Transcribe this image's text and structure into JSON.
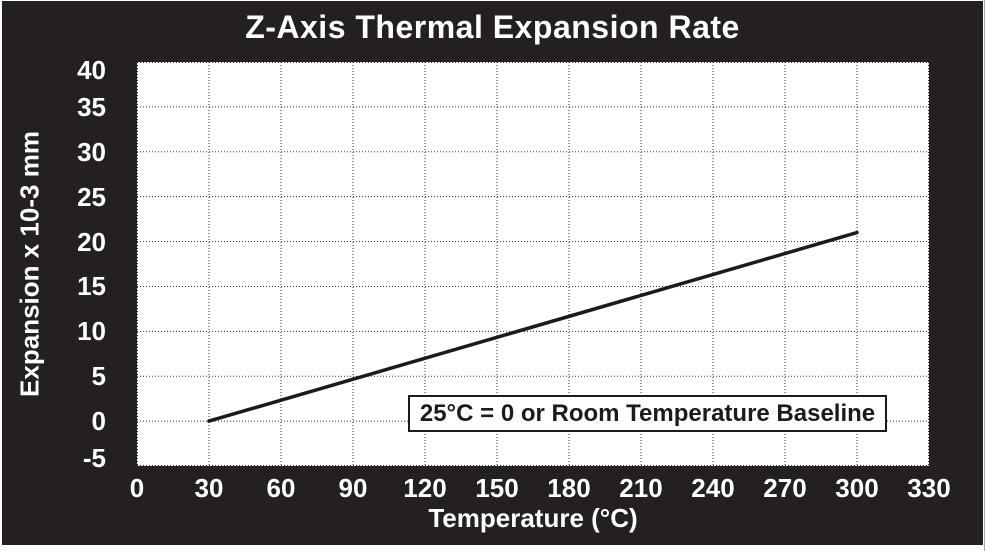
{
  "chart_data": {
    "type": "line",
    "title": "Z-Axis Thermal Expansion Rate",
    "xlabel": "Temperature (°C)",
    "ylabel": "Expansion x 10-3 mm",
    "xlim": [
      0,
      330
    ],
    "ylim": [
      -5,
      40
    ],
    "xticks": [
      0,
      30,
      60,
      90,
      120,
      150,
      180,
      210,
      240,
      270,
      300,
      330
    ],
    "yticks": [
      40,
      35,
      30,
      25,
      20,
      15,
      10,
      5,
      0,
      -5
    ],
    "grid": "dotted, vertical every 30, horizontal every 5",
    "legend": "none",
    "series": [
      {
        "name": "Z-axis thermal expansion",
        "points": [
          {
            "x": 30,
            "y": 0
          },
          {
            "x": 300,
            "y": 21
          }
        ]
      }
    ],
    "annotation": "25°C = 0 or Room Temperature Baseline",
    "colors": {
      "frame_background": "#241f20",
      "frame_text": "#ffffff",
      "plot_background": "#ffffff",
      "gridline": "#333333",
      "line": "#1b1b1b",
      "annotation_border": "#1b1b1b",
      "annotation_text": "#1b1b1b"
    }
  }
}
